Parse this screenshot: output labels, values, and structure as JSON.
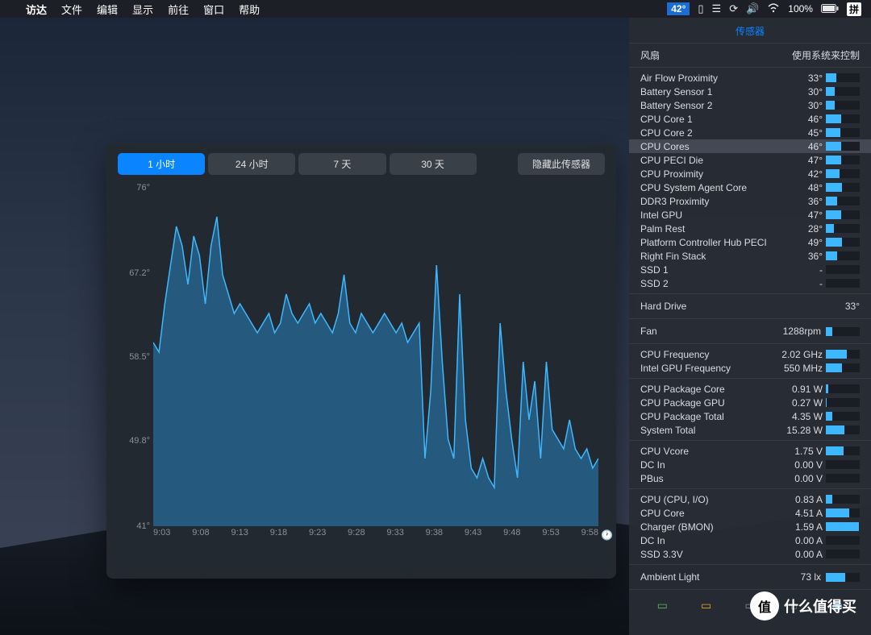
{
  "menubar": {
    "app": "访达",
    "items": [
      "文件",
      "编辑",
      "显示",
      "前往",
      "窗口",
      "帮助"
    ],
    "temp": "42°",
    "battery": "100%",
    "ime": "拼"
  },
  "chart": {
    "tabs": [
      "1 小时",
      "24 小时",
      "7 天",
      "30 天"
    ],
    "active_tab": 0,
    "hide_label": "隐藏此传感器",
    "type": "area-line",
    "ylim": [
      41,
      76
    ],
    "y_ticks": [
      76,
      67.2,
      58.5,
      49.8,
      41
    ],
    "x_ticks": [
      "9:03",
      "9:08",
      "9:13",
      "9:18",
      "9:23",
      "9:28",
      "9:33",
      "9:38",
      "9:43",
      "9:48",
      "9:53",
      "9:58"
    ],
    "line_color": "#3db8ff",
    "fill_color": "rgba(40,130,190,0.55)",
    "background": "#232930",
    "axis_color": "#8a9099",
    "label_fontsize": 11,
    "data": [
      60,
      59,
      64,
      68,
      72,
      70,
      66,
      71,
      69,
      64,
      70,
      73,
      67,
      65,
      63,
      64,
      63,
      62,
      61,
      62,
      63,
      61,
      62,
      65,
      63,
      62,
      63,
      64,
      62,
      63,
      62,
      61,
      63,
      67,
      62,
      61,
      63,
      62,
      61,
      62,
      63,
      62,
      61,
      62,
      60,
      61,
      62,
      48,
      55,
      68,
      58,
      50,
      48,
      65,
      52,
      47,
      46,
      48,
      46,
      45,
      62,
      55,
      50,
      46,
      58,
      52,
      56,
      48,
      58,
      51,
      50,
      49,
      52,
      49,
      48,
      49,
      47,
      48
    ]
  },
  "panel": {
    "title": "传感器",
    "fan_header_label": "风扇",
    "fan_header_value": "使用系统来控制",
    "sensors": [
      {
        "label": "Air Flow Proximity",
        "value": "33°",
        "pct": 30
      },
      {
        "label": "Battery Sensor 1",
        "value": "30°",
        "pct": 26
      },
      {
        "label": "Battery Sensor 2",
        "value": "30°",
        "pct": 26
      },
      {
        "label": "CPU Core 1",
        "value": "46°",
        "pct": 45
      },
      {
        "label": "CPU Core 2",
        "value": "45°",
        "pct": 44
      },
      {
        "label": "CPU Cores",
        "value": "46°",
        "pct": 45,
        "highlight": true
      },
      {
        "label": "CPU PECI Die",
        "value": "47°",
        "pct": 46
      },
      {
        "label": "CPU Proximity",
        "value": "42°",
        "pct": 40
      },
      {
        "label": "CPU System Agent Core",
        "value": "48°",
        "pct": 47
      },
      {
        "label": "DDR3 Proximity",
        "value": "36°",
        "pct": 33
      },
      {
        "label": "Intel GPU",
        "value": "47°",
        "pct": 46
      },
      {
        "label": "Palm Rest",
        "value": "28°",
        "pct": 24
      },
      {
        "label": "Platform Controller Hub PECI",
        "value": "49°",
        "pct": 48
      },
      {
        "label": "Right Fin Stack",
        "value": "36°",
        "pct": 33
      },
      {
        "label": "SSD 1",
        "value": "-",
        "pct": 0
      },
      {
        "label": "SSD 2",
        "value": "-",
        "pct": 0
      }
    ],
    "hard_drive": {
      "label": "Hard Drive",
      "value": "33°"
    },
    "fan": {
      "label": "Fan",
      "value": "1288rpm",
      "pct": 18
    },
    "freq": [
      {
        "label": "CPU Frequency",
        "value": "2.02 GHz",
        "pct": 62
      },
      {
        "label": "Intel GPU Frequency",
        "value": "550 MHz",
        "pct": 48
      }
    ],
    "power": [
      {
        "label": "CPU Package Core",
        "value": "0.91 W",
        "pct": 6
      },
      {
        "label": "CPU Package GPU",
        "value": "0.27 W",
        "pct": 3
      },
      {
        "label": "CPU Package Total",
        "value": "4.35 W",
        "pct": 20
      },
      {
        "label": "System Total",
        "value": "15.28 W",
        "pct": 55
      }
    ],
    "voltage": [
      {
        "label": "CPU Vcore",
        "value": "1.75 V",
        "pct": 52
      },
      {
        "label": "DC In",
        "value": "0.00 V",
        "pct": 0
      },
      {
        "label": "PBus",
        "value": "0.00 V",
        "pct": 0
      }
    ],
    "current": [
      {
        "label": "CPU (CPU, I/O)",
        "value": "0.83 A",
        "pct": 18
      },
      {
        "label": "CPU Core",
        "value": "4.51 A",
        "pct": 68
      },
      {
        "label": "Charger (BMON)",
        "value": "1.59 A",
        "pct": 98
      },
      {
        "label": "DC In",
        "value": "0.00 A",
        "pct": 0
      },
      {
        "label": "SSD 3.3V",
        "value": "0.00 A",
        "pct": 0
      }
    ],
    "light": {
      "label": "Ambient Light",
      "value": "73 lx",
      "pct": 58
    },
    "bar_color": "#3db8ff",
    "bar_bg": "#1a1e24"
  },
  "watermark": {
    "text": "什么值得买",
    "badge": "值"
  }
}
